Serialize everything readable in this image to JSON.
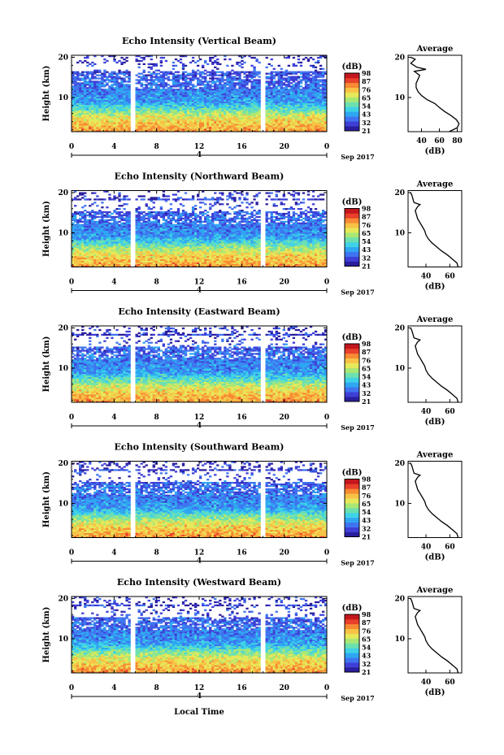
{
  "colors": {
    "scale": [
      "#2a1e9e",
      "#3d3fd6",
      "#3f74f0",
      "#2fa6f2",
      "#3fd2e6",
      "#6de0b0",
      "#a9e775",
      "#e6e85a",
      "#f7c245",
      "#f78a33",
      "#e8402b",
      "#c4161c"
    ],
    "background": "#ffffff",
    "line": "#000000"
  },
  "figure": {
    "xlabel": "Local Time",
    "date_label": "Sep 2017"
  },
  "chart_data": [
    {
      "type": "heatmap",
      "title": "Echo Intensity (Vertical Beam)",
      "ylabel": "Height (km)",
      "xlim": [
        0,
        24
      ],
      "xticks": [
        "0",
        "4",
        "8",
        "12",
        "16",
        "20",
        "0"
      ],
      "ylim": [
        1.5,
        20.5
      ],
      "yticks": [
        "10",
        "20"
      ],
      "day_marker": "4",
      "colorbar": {
        "label": "(dB)",
        "ticks": [
          "21",
          "32",
          "43",
          "54",
          "65",
          "76",
          "87",
          "98"
        ]
      },
      "gaps_hours": [
        [
          5.5,
          6.1
        ],
        [
          17.7,
          18.3
        ]
      ],
      "upper_blank_km": [
        16.5,
        18.5
      ],
      "profile": {
        "title": "Average",
        "xlabel": "(dB)",
        "xticks": [
          "40",
          "60",
          "80"
        ],
        "xlim": [
          25,
          85
        ],
        "height_km": [
          1.5,
          2.5,
          3.5,
          4.5,
          5.5,
          6.5,
          7.5,
          8.5,
          9.5,
          10.5,
          11.5,
          12.5,
          13.5,
          14.5,
          15.5,
          16.5,
          17.0,
          17.5,
          18.5,
          19.5,
          20.0
        ],
        "db": [
          71,
          80,
          82,
          79,
          73,
          66,
          60,
          55,
          46,
          40,
          36,
          34,
          34,
          36,
          38,
          32,
          45,
          35,
          28,
          33,
          28
        ]
      }
    },
    {
      "type": "heatmap",
      "title": "Echo Intensity (Northward Beam)",
      "ylabel": "Height (km)",
      "xlim": [
        0,
        24
      ],
      "xticks": [
        "0",
        "4",
        "8",
        "12",
        "16",
        "20",
        "0"
      ],
      "ylim": [
        1.5,
        20.5
      ],
      "yticks": [
        "10",
        "20"
      ],
      "day_marker": "4",
      "colorbar": {
        "label": "(dB)",
        "ticks": [
          "21",
          "32",
          "43",
          "54",
          "65",
          "76",
          "87",
          "98"
        ]
      },
      "gaps_hours": [
        [
          5.5,
          6.1
        ],
        [
          17.7,
          18.3
        ]
      ],
      "upper_blank_km": [
        15.5,
        18.0
      ],
      "profile": {
        "title": "Average",
        "xlabel": "(dB)",
        "xticks": [
          "40",
          "60"
        ],
        "xlim": [
          25,
          70
        ],
        "height_km": [
          1.5,
          2.5,
          3.5,
          4.5,
          5.5,
          6.5,
          7.5,
          8.5,
          9.5,
          10.5,
          11.5,
          12.5,
          13.5,
          14.5,
          15.5,
          16.5,
          17.0,
          17.5,
          18.5,
          19.5,
          20.0
        ],
        "db": [
          67,
          66,
          62,
          58,
          53,
          49,
          45,
          42,
          40,
          39,
          37,
          35,
          33,
          32,
          31,
          33,
          35,
          30,
          29,
          28,
          27
        ]
      }
    },
    {
      "type": "heatmap",
      "title": "Echo Intensity (Eastward Beam)",
      "ylabel": "Height (km)",
      "xlim": [
        0,
        24
      ],
      "xticks": [
        "0",
        "4",
        "8",
        "12",
        "16",
        "20",
        "0"
      ],
      "ylim": [
        1.5,
        20.5
      ],
      "yticks": [
        "10",
        "20"
      ],
      "day_marker": "4",
      "colorbar": {
        "label": "(dB)",
        "ticks": [
          "21",
          "32",
          "43",
          "54",
          "65",
          "76",
          "87",
          "98"
        ]
      },
      "gaps_hours": [
        [
          5.5,
          6.1
        ],
        [
          17.7,
          18.3
        ]
      ],
      "upper_blank_km": [
        15.5,
        18.0
      ],
      "profile": {
        "title": "Average",
        "xlabel": "(dB)",
        "xticks": [
          "40",
          "60"
        ],
        "xlim": [
          25,
          70
        ],
        "height_km": [
          1.5,
          2.5,
          3.5,
          4.5,
          5.5,
          6.5,
          7.5,
          8.5,
          9.5,
          10.5,
          11.5,
          12.5,
          13.5,
          14.5,
          15.5,
          16.5,
          17.0,
          17.5,
          18.5,
          19.5,
          20.0
        ],
        "db": [
          67,
          66,
          62,
          58,
          53,
          49,
          45,
          42,
          40,
          39,
          37,
          35,
          33,
          32,
          31,
          33,
          35,
          30,
          29,
          28,
          27
        ]
      }
    },
    {
      "type": "heatmap",
      "title": "Echo Intensity (Southward Beam)",
      "ylabel": "Height (km)",
      "xlim": [
        0,
        24
      ],
      "xticks": [
        "0",
        "4",
        "8",
        "12",
        "16",
        "20",
        "0"
      ],
      "ylim": [
        1.5,
        20.5
      ],
      "yticks": [
        "10",
        "20"
      ],
      "day_marker": "4",
      "colorbar": {
        "label": "(dB)",
        "ticks": [
          "21",
          "32",
          "43",
          "54",
          "65",
          "76",
          "87",
          "98"
        ]
      },
      "gaps_hours": [
        [
          5.5,
          6.1
        ],
        [
          17.7,
          18.3
        ]
      ],
      "upper_blank_km": [
        15.5,
        18.0
      ],
      "profile": {
        "title": "Average",
        "xlabel": "(dB)",
        "xticks": [
          "40",
          "60"
        ],
        "xlim": [
          25,
          70
        ],
        "height_km": [
          1.5,
          2.5,
          3.5,
          4.5,
          5.5,
          6.5,
          7.5,
          8.5,
          9.5,
          10.5,
          11.5,
          12.5,
          13.5,
          14.5,
          15.5,
          16.5,
          17.0,
          17.5,
          18.5,
          19.5,
          20.0
        ],
        "db": [
          67,
          66,
          62,
          58,
          53,
          49,
          45,
          42,
          40,
          39,
          37,
          35,
          33,
          32,
          31,
          33,
          35,
          30,
          29,
          28,
          27
        ]
      }
    },
    {
      "type": "heatmap",
      "title": "Echo Intensity (Westward Beam)",
      "ylabel": "Height (km)",
      "xlim": [
        0,
        24
      ],
      "xticks": [
        "0",
        "4",
        "8",
        "12",
        "16",
        "20",
        "0"
      ],
      "ylim": [
        1.5,
        20.5
      ],
      "yticks": [
        "10",
        "20"
      ],
      "day_marker": "4",
      "colorbar": {
        "label": "(dB)",
        "ticks": [
          "21",
          "32",
          "43",
          "54",
          "65",
          "76",
          "87",
          "98"
        ]
      },
      "gaps_hours": [
        [
          5.5,
          6.1
        ],
        [
          17.7,
          18.3
        ]
      ],
      "upper_blank_km": [
        15.5,
        18.0
      ],
      "profile": {
        "title": "Average",
        "xlabel": "(dB)",
        "xticks": [
          "40",
          "60"
        ],
        "xlim": [
          25,
          70
        ],
        "height_km": [
          1.5,
          2.5,
          3.5,
          4.5,
          5.5,
          6.5,
          7.5,
          8.5,
          9.5,
          10.5,
          11.5,
          12.5,
          13.5,
          14.5,
          15.5,
          16.5,
          17.0,
          17.5,
          18.5,
          19.5,
          20.0
        ],
        "db": [
          67,
          66,
          62,
          58,
          53,
          49,
          45,
          42,
          40,
          39,
          37,
          35,
          33,
          32,
          31,
          33,
          35,
          30,
          29,
          28,
          27
        ]
      }
    }
  ]
}
